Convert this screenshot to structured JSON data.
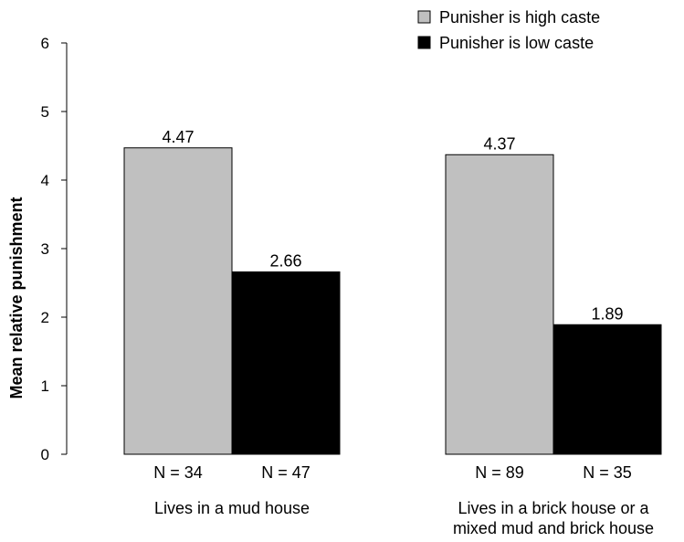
{
  "chart_data": {
    "type": "bar",
    "ylabel": "Mean relative punishment",
    "ylim": [
      0,
      6
    ],
    "yticks": [
      0,
      1,
      2,
      3,
      4,
      5,
      6
    ],
    "grid": false,
    "legend_position": "top-right",
    "groups": [
      {
        "label_lines": [
          "Lives in a mud house"
        ],
        "n_labels": [
          "N = 34",
          "N = 47"
        ]
      },
      {
        "label_lines": [
          "Lives in a brick house or a",
          "mixed mud and brick house"
        ],
        "n_labels": [
          "N = 89",
          "N = 35"
        ]
      }
    ],
    "series": [
      {
        "name": "Punisher is high caste",
        "color": "#c0c0c0",
        "values": [
          4.47,
          4.37
        ],
        "data_labels": [
          "4.47",
          "4.37"
        ]
      },
      {
        "name": "Punisher is low caste",
        "color": "#000000",
        "values": [
          2.66,
          1.89
        ],
        "data_labels": [
          "2.66",
          "1.89"
        ]
      }
    ]
  }
}
